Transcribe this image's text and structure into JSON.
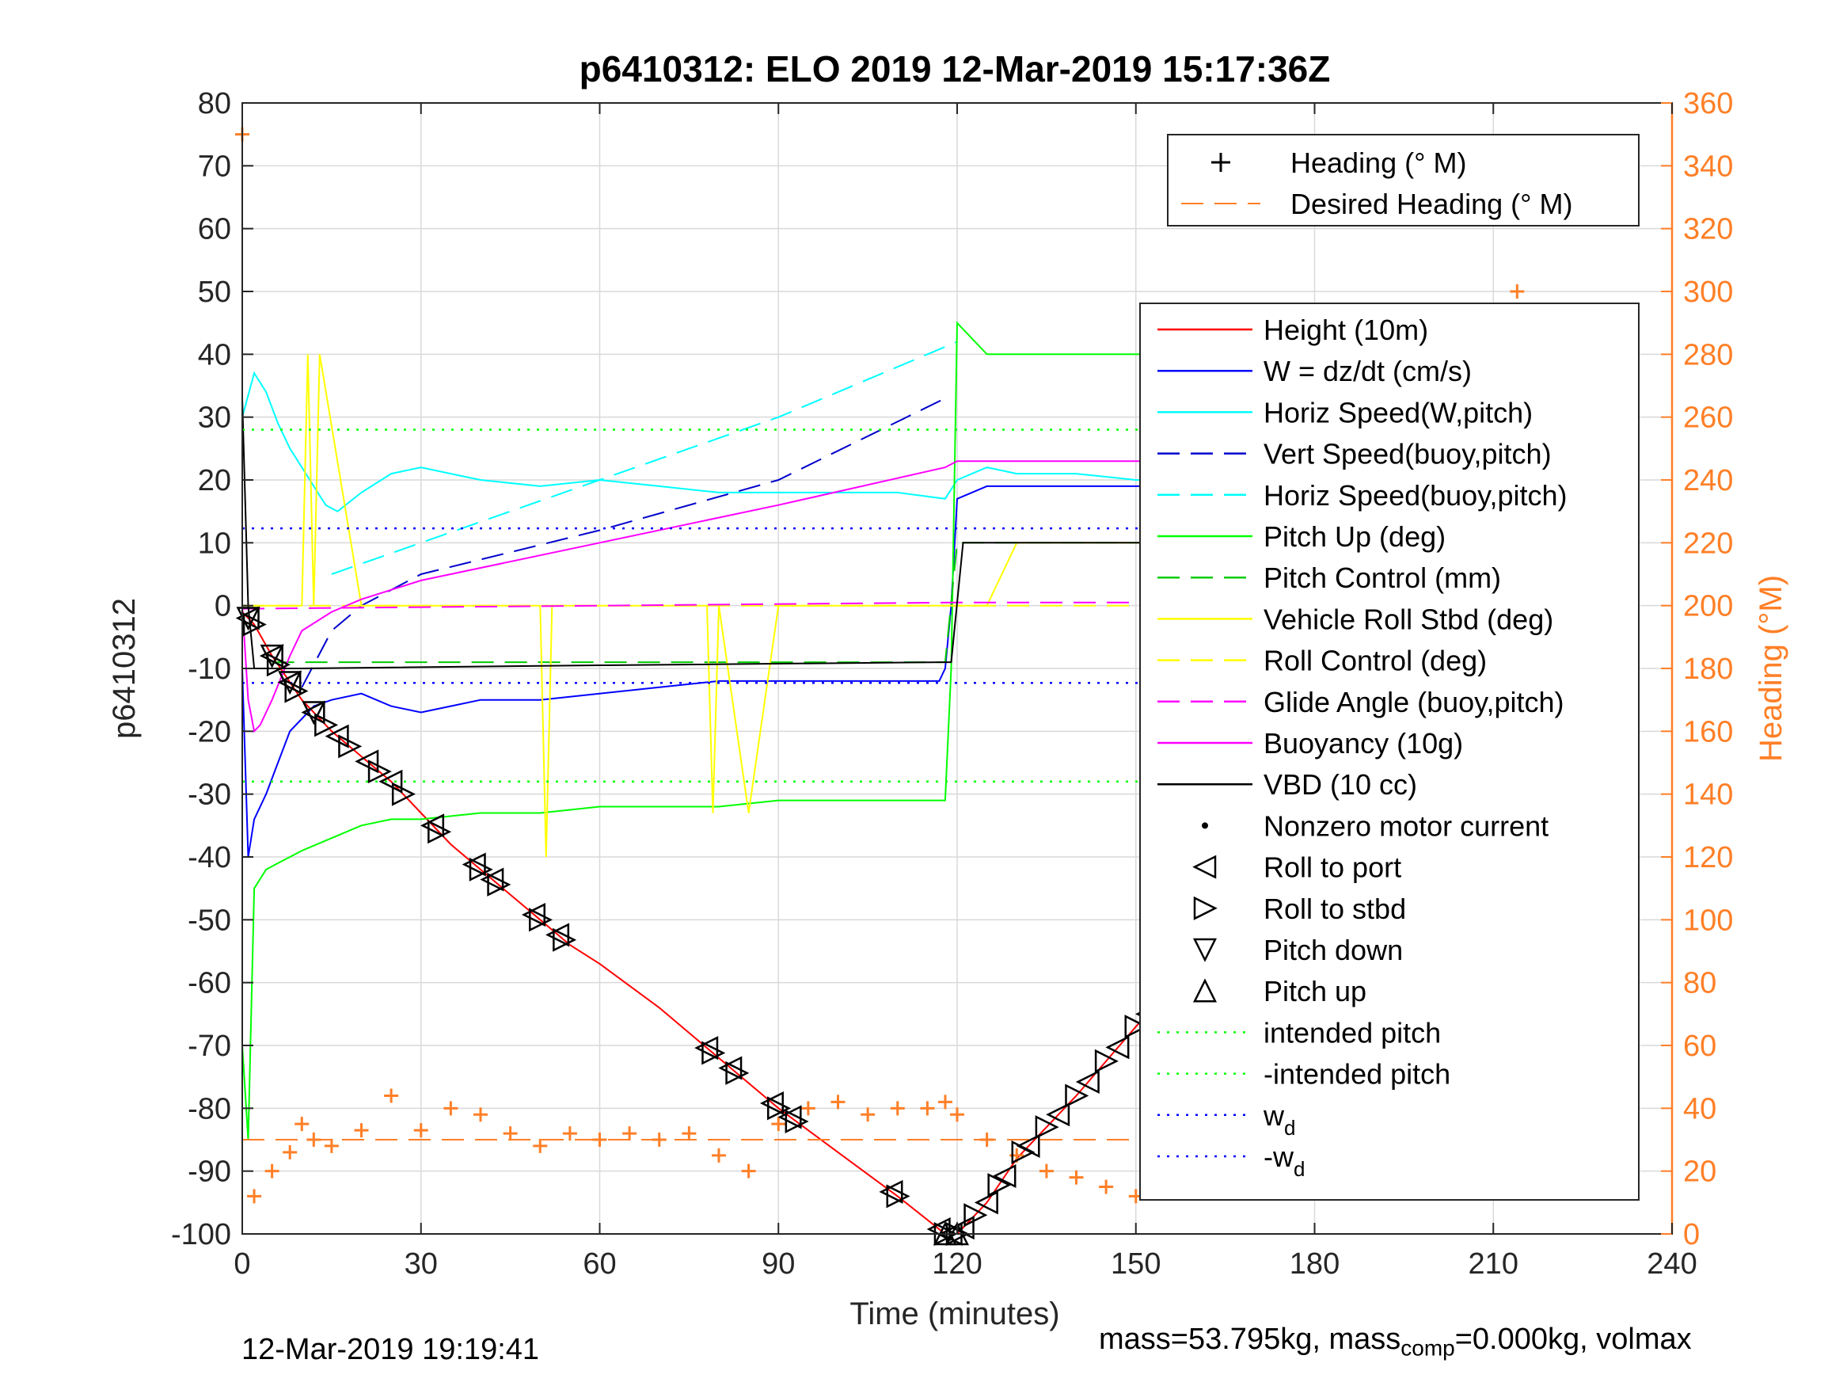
{
  "chart_data": {
    "type": "line",
    "title": "p6410312: ELO 2019 12-Mar-2019 15:17:36Z",
    "xlabel": "Time (minutes)",
    "ylabel": "p6410312",
    "ylabel_right": "Heading (°M)",
    "xlim": [
      0,
      240
    ],
    "ylim": [
      -100,
      80
    ],
    "ylim_right": [
      0,
      360
    ],
    "x_ticks": [
      "0",
      "30",
      "60",
      "90",
      "120",
      "150",
      "180",
      "210",
      "240"
    ],
    "y_ticks": [
      "-100",
      "-90",
      "-80",
      "-70",
      "-60",
      "-50",
      "-40",
      "-30",
      "-20",
      "-10",
      "0",
      "10",
      "20",
      "30",
      "40",
      "50",
      "60",
      "70",
      "80"
    ],
    "y_ticks_right": [
      "0",
      "20",
      "40",
      "60",
      "80",
      "100",
      "120",
      "140",
      "160",
      "180",
      "200",
      "220",
      "240",
      "260",
      "280",
      "300",
      "320",
      "340",
      "360"
    ],
    "grid": true,
    "legend_heading": {
      "placement": "top-right",
      "entries": [
        "Heading (° M)",
        "Desired Heading (° M)"
      ]
    },
    "legend_main": {
      "placement": "right",
      "entries": [
        {
          "label": "Height (10m)",
          "color": "#ff0000",
          "style": "solid"
        },
        {
          "label": "W = dz/dt (cm/s)",
          "color": "#0000ff",
          "style": "solid"
        },
        {
          "label": "Horiz Speed(W,pitch)",
          "color": "#00ffff",
          "style": "solid"
        },
        {
          "label": "Vert Speed(buoy,pitch)",
          "color": "#0000cc",
          "style": "dashed"
        },
        {
          "label": "Horiz Speed(buoy,pitch)",
          "color": "#00ffff",
          "style": "dashed"
        },
        {
          "label": "Pitch Up (deg)",
          "color": "#00ff00",
          "style": "solid"
        },
        {
          "label": "Pitch Control (mm)",
          "color": "#00cc00",
          "style": "dashed"
        },
        {
          "label": "Vehicle Roll Stbd (deg)",
          "color": "#ffff00",
          "style": "solid"
        },
        {
          "label": "Roll Control (deg)",
          "color": "#ffff00",
          "style": "dashed"
        },
        {
          "label": "Glide Angle (buoy,pitch)",
          "color": "#ff00ff",
          "style": "dashed"
        },
        {
          "label": "Buoyancy (10g)",
          "color": "#ff00ff",
          "style": "solid"
        },
        {
          "label": "VBD (10 cc)",
          "color": "#000000",
          "style": "solid"
        },
        {
          "label": "Nonzero motor current",
          "color": "#000000",
          "style": "dot"
        },
        {
          "label": "Roll to port",
          "color": "#000000",
          "style": "tri-left"
        },
        {
          "label": "Roll to stbd",
          "color": "#000000",
          "style": "tri-right"
        },
        {
          "label": "Pitch down",
          "color": "#000000",
          "style": "tri-down"
        },
        {
          "label": "Pitch up",
          "color": "#000000",
          "style": "tri-up"
        },
        {
          "label": "intended pitch",
          "color": "#00ff00",
          "style": "dotted"
        },
        {
          "label": "-intended pitch",
          "color": "#00ff00",
          "style": "dotted"
        },
        {
          "label": "w",
          "sub": "d",
          "color": "#0000ff",
          "style": "dotted"
        },
        {
          "label": "-w",
          "sub": "d",
          "color": "#0000ff",
          "style": "dotted"
        }
      ]
    },
    "series": [
      {
        "name": "Height (10m)",
        "color": "#ff0000",
        "style": "solid",
        "x": [
          0,
          2,
          5,
          10,
          15,
          20,
          25,
          30,
          35,
          40,
          45,
          50,
          55,
          60,
          70,
          80,
          90,
          100,
          110,
          118,
          120,
          125,
          130,
          140,
          150,
          160,
          170,
          180,
          190,
          200,
          210,
          220,
          228
        ],
        "y": [
          -1,
          -3,
          -8,
          -15,
          -20,
          -24,
          -28,
          -33,
          -38,
          -42,
          -46,
          -50,
          -54,
          -57,
          -64,
          -72,
          -80,
          -87,
          -94,
          -100,
          -100,
          -95,
          -88,
          -78,
          -67,
          -57,
          -47,
          -37,
          -28,
          -19,
          -11,
          -3,
          0
        ]
      },
      {
        "name": "W = dz/dt (cm/s)",
        "color": "#0000ff",
        "style": "solid",
        "x": [
          0,
          1,
          2,
          4,
          6,
          8,
          10,
          12,
          15,
          20,
          25,
          30,
          35,
          40,
          50,
          60,
          70,
          80,
          90,
          100,
          110,
          117,
          118,
          119,
          120,
          125,
          130,
          140,
          150,
          160,
          170,
          180,
          190,
          200,
          210,
          215,
          220,
          225,
          228
        ],
        "y": [
          -10,
          -40,
          -34,
          -30,
          -25,
          -20,
          -18,
          -16,
          -15,
          -14,
          -16,
          -17,
          -16,
          -15,
          -15,
          -14,
          -13,
          -12,
          -12,
          -12,
          -12,
          -12,
          -10,
          0,
          17,
          19,
          19,
          19,
          19,
          19,
          18,
          17,
          16,
          15,
          14,
          13,
          14,
          13,
          12
        ]
      },
      {
        "name": "Horiz Speed(W,pitch)",
        "color": "#00ffff",
        "style": "solid",
        "x": [
          0,
          2,
          4,
          6,
          8,
          10,
          12,
          14,
          16,
          20,
          25,
          30,
          35,
          40,
          50,
          60,
          70,
          80,
          90,
          100,
          110,
          118,
          120,
          125,
          130,
          140,
          150,
          160,
          170,
          180,
          190,
          200,
          210,
          215,
          220,
          225,
          228
        ],
        "y": [
          30,
          37,
          34,
          29,
          25,
          22,
          19,
          16,
          15,
          18,
          21,
          22,
          21,
          20,
          19,
          20,
          19,
          18,
          18,
          18,
          18,
          17,
          20,
          22,
          21,
          21,
          20,
          20,
          20,
          19,
          19,
          18,
          19,
          22,
          33,
          45,
          42
        ]
      },
      {
        "name": "Vert Speed(buoy,pitch)",
        "color": "#0000cc",
        "style": "dashed",
        "x": [
          10,
          15,
          20,
          30,
          60,
          90,
          118
        ],
        "y": [
          -13,
          -4,
          0,
          5,
          12,
          20,
          33
        ]
      },
      {
        "name": "Horiz Speed(buoy,pitch)",
        "color": "#00ffff",
        "style": "dashed",
        "x": [
          15,
          30,
          60,
          90,
          120
        ],
        "y": [
          5,
          10,
          20,
          30,
          42
        ]
      },
      {
        "name": "Pitch Up (deg)",
        "color": "#00ff00",
        "style": "solid",
        "x": [
          0,
          1,
          2,
          4,
          6,
          10,
          15,
          20,
          25,
          30,
          40,
          50,
          60,
          70,
          80,
          90,
          100,
          110,
          118,
          119,
          120,
          125,
          130,
          140,
          150,
          160,
          170,
          180,
          190,
          200,
          210,
          220,
          225,
          228
        ],
        "y": [
          -70,
          -85,
          -45,
          -42,
          -41,
          -39,
          -37,
          -35,
          -34,
          -34,
          -33,
          -33,
          -32,
          -32,
          -32,
          -31,
          -31,
          -31,
          -31,
          -10,
          45,
          40,
          40,
          40,
          40,
          40,
          40,
          40,
          39,
          37,
          35,
          30,
          25,
          10
        ]
      },
      {
        "name": "Pitch Control (mm)",
        "color": "#00cc00",
        "style": "dashed",
        "x": [
          5,
          118,
          120,
          228
        ],
        "y": [
          -9,
          -9,
          10,
          10
        ]
      },
      {
        "name": "Vehicle Roll Stbd (deg)",
        "color": "#ffff00",
        "style": "solid",
        "x": [
          0,
          10,
          11,
          12,
          13,
          20,
          30,
          40,
          50,
          51,
          52,
          60,
          70,
          78,
          79,
          80,
          85,
          90,
          100,
          110,
          118,
          120,
          125,
          130,
          140,
          150,
          160,
          170,
          180,
          190,
          200,
          210,
          220,
          228
        ],
        "y": [
          0,
          0,
          40,
          0,
          40,
          0,
          0,
          0,
          0,
          -40,
          0,
          0,
          0,
          0,
          -33,
          0,
          -33,
          0,
          0,
          0,
          0,
          0,
          0,
          10,
          10,
          10,
          10,
          10,
          10,
          10,
          10,
          10,
          10,
          10
        ]
      },
      {
        "name": "Roll Control (deg)",
        "color": "#ffff00",
        "style": "dashed",
        "x": [
          0,
          118,
          120,
          228
        ],
        "y": [
          0,
          0,
          0,
          0
        ]
      },
      {
        "name": "Glide Angle (buoy,pitch)",
        "color": "#ff00ff",
        "style": "dashed",
        "x": [
          0,
          60,
          120,
          180,
          228
        ],
        "y": [
          -0.5,
          0,
          0.5,
          0.5,
          0.5
        ]
      },
      {
        "name": "Buoyancy (10g)",
        "color": "#ff00ff",
        "style": "solid",
        "x": [
          0,
          1,
          2,
          3,
          5,
          8,
          10,
          15,
          20,
          30,
          60,
          90,
          118,
          120,
          150,
          180,
          200,
          210,
          220,
          225,
          228
        ],
        "y": [
          0,
          -15,
          -20,
          -19,
          -15,
          -8,
          -4,
          -1,
          1,
          4,
          10,
          16,
          22,
          23,
          23,
          23,
          22,
          21,
          20,
          24,
          25
        ]
      },
      {
        "name": "VBD (10 cc)",
        "color": "#000000",
        "style": "solid",
        "x": [
          0,
          1,
          2,
          10,
          60,
          118,
          119,
          121,
          150,
          200,
          210,
          222,
          223,
          228
        ],
        "y": [
          33,
          0,
          -10,
          -10,
          -9.5,
          -9,
          -9,
          10,
          10,
          10,
          10,
          10,
          35,
          35
        ]
      },
      {
        "name": "Heading (° M)",
        "color": "#ff7f27",
        "style": "plus",
        "axis": "right",
        "x": [
          0,
          2,
          5,
          8,
          10,
          12,
          15,
          20,
          25,
          30,
          35,
          40,
          45,
          50,
          55,
          60,
          65,
          70,
          75,
          80,
          85,
          90,
          95,
          100,
          105,
          110,
          115,
          118,
          120,
          125,
          130,
          135,
          140,
          145,
          150,
          155,
          160,
          165,
          170,
          175,
          180,
          185,
          190,
          195,
          200,
          205,
          210,
          212,
          214,
          216,
          218,
          220,
          222,
          224,
          226,
          228
        ],
        "y": [
          350,
          12,
          20,
          26,
          35,
          30,
          28,
          33,
          44,
          33,
          40,
          38,
          32,
          28,
          32,
          30,
          32,
          30,
          32,
          25,
          20,
          35,
          40,
          42,
          38,
          40,
          40,
          42,
          38,
          30,
          25,
          20,
          18,
          15,
          12,
          18,
          20,
          22,
          18,
          20,
          16,
          18,
          20,
          22,
          15,
          20,
          30,
          340,
          300,
          45,
          105,
          60,
          20,
          40,
          35,
          15
        ]
      },
      {
        "name": "Desired Heading (° M)",
        "color": "#ff7f27",
        "style": "dashed",
        "axis": "right",
        "x": [
          0,
          228
        ],
        "y": [
          30,
          30
        ]
      },
      {
        "name": "intended pitch",
        "color": "#00ff00",
        "style": "dotted",
        "x": [
          0,
          228
        ],
        "y": [
          28,
          28
        ]
      },
      {
        "name": "-intended pitch",
        "color": "#00ff00",
        "style": "dotted",
        "x": [
          0,
          228
        ],
        "y": [
          -28,
          -28
        ]
      },
      {
        "name": "w_d",
        "color": "#0000ff",
        "style": "dotted",
        "x": [
          0,
          228
        ],
        "y": [
          12.3,
          12.3
        ]
      },
      {
        "name": "-w_d",
        "color": "#0000ff",
        "style": "dotted",
        "x": [
          0,
          228
        ],
        "y": [
          -12.3,
          -12.3
        ]
      }
    ],
    "markers": {
      "roll_port_x": [
        1,
        5,
        8,
        12,
        16,
        21,
        25,
        32,
        39,
        42,
        49,
        53,
        78,
        82,
        89,
        92,
        109,
        117,
        119,
        121,
        125,
        128,
        132,
        137,
        142,
        147,
        152,
        158,
        163,
        168,
        173,
        178,
        184,
        190,
        196,
        202,
        206,
        212,
        218,
        222,
        226
      ],
      "roll_stbd_x": [
        2,
        6,
        9,
        14,
        18,
        23,
        27,
        33,
        40,
        43,
        50,
        54,
        79,
        83,
        90,
        93,
        110,
        118,
        120,
        123,
        127,
        131,
        135,
        140,
        145,
        150,
        156,
        161,
        166,
        171,
        176,
        182,
        188,
        194,
        200,
        204,
        210,
        216,
        220,
        224,
        228
      ],
      "pitch_down_x": [
        1,
        5,
        8,
        12
      ],
      "pitch_up_x": [
        118,
        120
      ]
    }
  },
  "footer": {
    "left": "12-Mar-2019 19:19:41",
    "right_prefix": "mass=53.795kg, mass",
    "right_sub": "comp",
    "right_suffix": "=0.000kg, volmax"
  }
}
